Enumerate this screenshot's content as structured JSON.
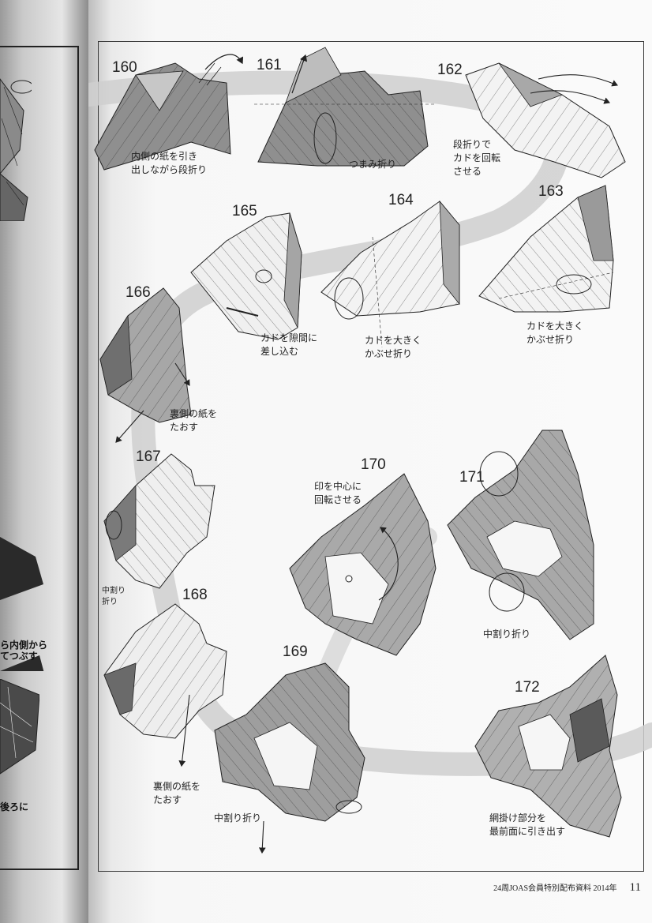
{
  "steps": [
    {
      "number": "160",
      "caption": [
        "内側の紙を引き",
        "出しながら段折り"
      ]
    },
    {
      "number": "161",
      "caption": [
        "つまみ折り"
      ]
    },
    {
      "number": "162",
      "caption": [
        "段折りで",
        "カドを回転",
        "させる"
      ]
    },
    {
      "number": "163",
      "caption": [
        "カドを大きく",
        "かぶせ折り"
      ]
    },
    {
      "number": "164",
      "caption": [
        "カドを大きく",
        "かぶせ折り"
      ]
    },
    {
      "number": "165",
      "caption": [
        "カドを隙間に",
        "差し込む"
      ]
    },
    {
      "number": "166",
      "caption": [
        "裏側の紙を",
        "たおす"
      ]
    },
    {
      "number": "167",
      "caption": [
        "中割り",
        "折り"
      ]
    },
    {
      "number": "168",
      "caption": [
        "裏側の紙を",
        "たおす"
      ]
    },
    {
      "number": "169",
      "caption": [
        "中割り折り"
      ]
    },
    {
      "number": "170",
      "caption": [
        "印を中心に",
        "回転させる"
      ]
    },
    {
      "number": "171",
      "caption": [
        "中割り折り"
      ]
    },
    {
      "number": "172",
      "caption": [
        "網掛け部分を",
        "最前面に引き出す"
      ]
    }
  ],
  "left_page": {
    "text_1": [
      "ら内側から",
      "てつぶす"
    ],
    "text_2": [
      "後ろに"
    ]
  },
  "footer": {
    "text": "24周JOAS会員特別配布資料 2014年",
    "page_number": "11"
  },
  "colors": {
    "path_band": "#cfcfcf",
    "paper_dark": "#7f7f7f",
    "paper_mid": "#b5b5b5",
    "paper_light": "#f4f4f4",
    "line": "#222222",
    "shade": "#5a5a5a"
  }
}
